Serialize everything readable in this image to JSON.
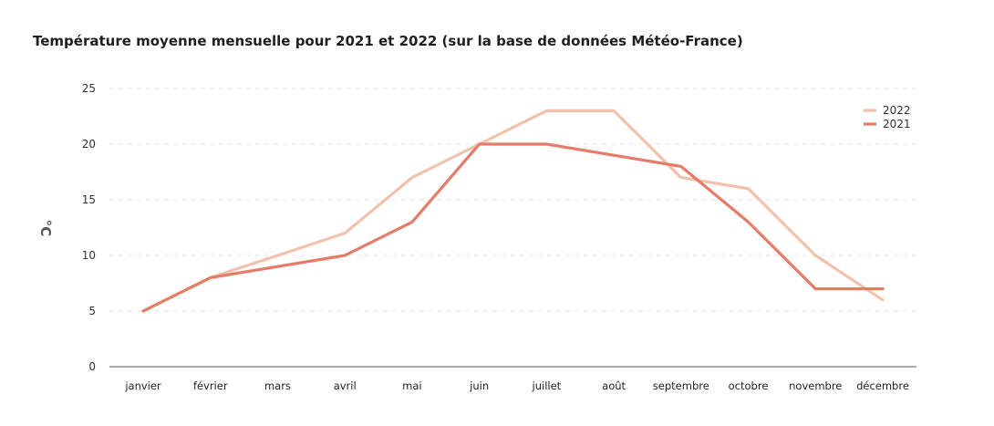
{
  "chart_data": {
    "type": "line",
    "title": "Température moyenne mensuelle pour 2021 et 2022 (sur la base de données Météo-France)",
    "ylabel": "°C",
    "xlabel": "",
    "categories": [
      "janvier",
      "février",
      "mars",
      "avril",
      "mai",
      "juin",
      "juillet",
      "août",
      "septembre",
      "octobre",
      "novembre",
      "décembre"
    ],
    "yticks": [
      "0",
      "5",
      "10",
      "15",
      "20",
      "25"
    ],
    "ylim": [
      0,
      25
    ],
    "grid": "horizontal dashed",
    "legend_position": "top-right",
    "series": [
      {
        "name": "2022",
        "color": "#f2c1ab",
        "values": [
          5,
          8,
          10,
          12,
          17,
          20,
          23,
          23,
          17,
          16,
          10,
          6
        ]
      },
      {
        "name": "2021",
        "color": "#e47c66",
        "values": [
          5,
          8,
          9,
          10,
          13,
          20,
          20,
          19,
          18,
          13,
          7,
          7
        ]
      }
    ]
  }
}
